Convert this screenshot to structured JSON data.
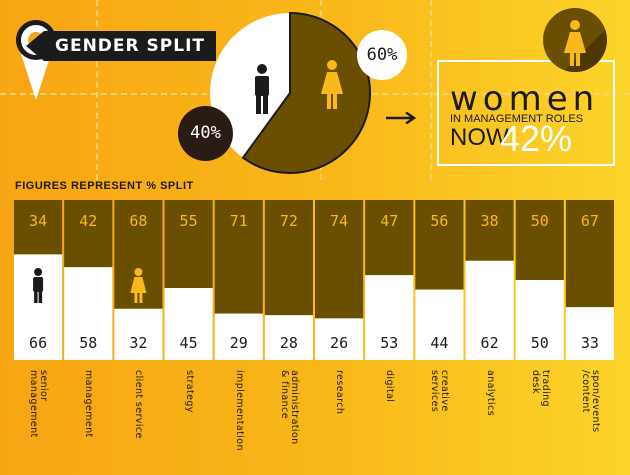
{
  "header": {
    "title": "Gender Split",
    "pct_female": "60%",
    "pct_male": "40%"
  },
  "callout": {
    "title": "women",
    "subtitle": "IN MANAGEMENT ROLES",
    "now_label": "NOW",
    "now_value": "42%"
  },
  "colors": {
    "background": "#f9b91a",
    "female": "#6a4f00",
    "male": "#ffffff",
    "dark": "#1c1b1c",
    "female_accent": "#f9b91a"
  },
  "chart_data": {
    "type": "bar",
    "stacked": true,
    "normalized": 100,
    "subtitle": "FIGURES REPRESENT % SPLIT",
    "categories": [
      "senior\nmanagement",
      "management",
      "client service",
      "strategy",
      "implementation",
      "administration\n& finance",
      "research",
      "digital",
      "creative\nservices",
      "analytics",
      "trading\ndesk",
      "spon/events\n/content"
    ],
    "series": [
      {
        "values": [
          34,
          42,
          68,
          55,
          71,
          72,
          74,
          47,
          56,
          38,
          50,
          67
        ]
      },
      {
        "values": [
          66,
          58,
          32,
          45,
          29,
          28,
          26,
          53,
          44,
          62,
          50,
          33
        ]
      }
    ],
    "icons": [
      "male-icon",
      "female-icon"
    ]
  }
}
